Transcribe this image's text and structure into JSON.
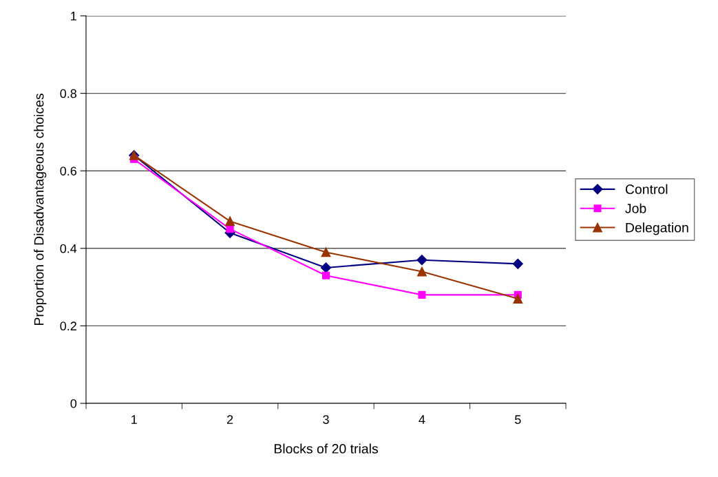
{
  "chart_data": {
    "type": "line",
    "xlabel": "Blocks of 20 trials",
    "ylabel": "Proportion of Disadvantageous choices",
    "categories": [
      "1",
      "2",
      "3",
      "4",
      "5"
    ],
    "series": [
      {
        "name": "Control",
        "color": "#000080",
        "marker": "diamond",
        "values": [
          0.64,
          0.44,
          0.35,
          0.37,
          0.36
        ]
      },
      {
        "name": "Job",
        "color": "#ff00ff",
        "marker": "square",
        "values": [
          0.63,
          0.45,
          0.33,
          0.28,
          0.28
        ]
      },
      {
        "name": "Delegation",
        "color": "#993300",
        "marker": "triangle",
        "values": [
          0.64,
          0.47,
          0.39,
          0.34,
          0.27
        ]
      }
    ],
    "ylim": [
      0,
      1
    ],
    "yticks": [
      0,
      0.2,
      0.4,
      0.6,
      0.8,
      1
    ],
    "grid": "y",
    "legend": "right",
    "line_style": "solid"
  }
}
